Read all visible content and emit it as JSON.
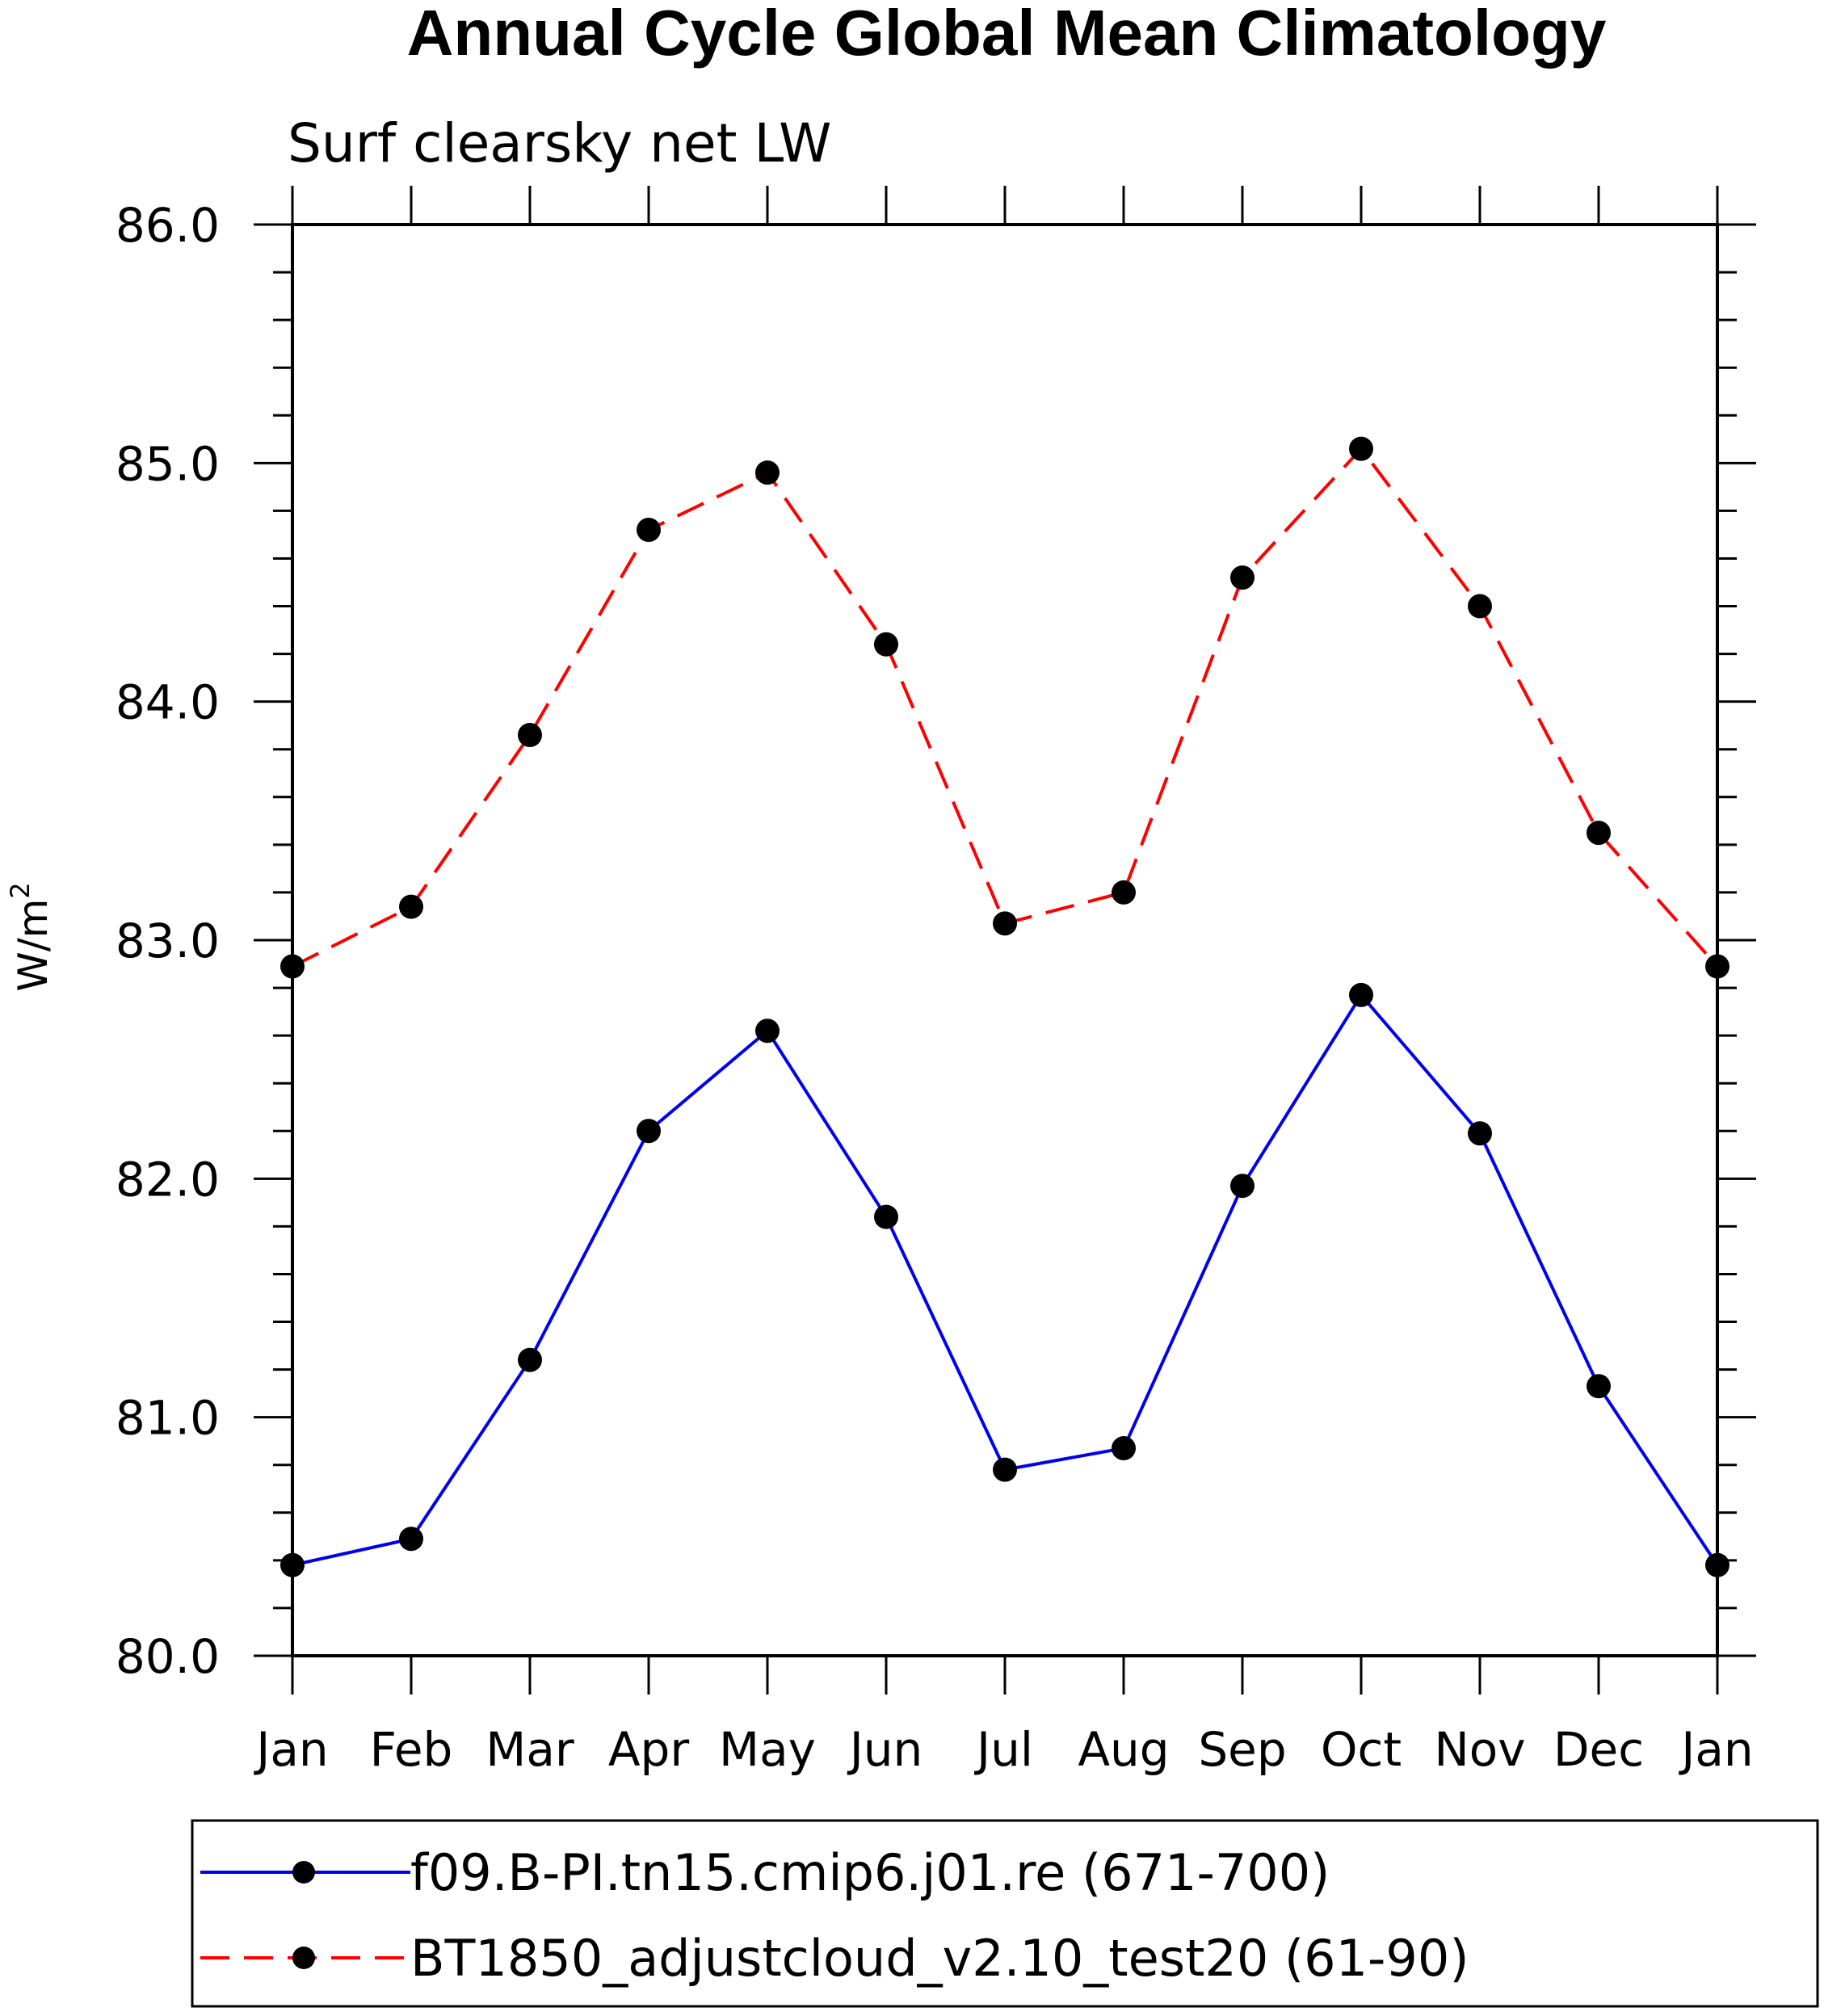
{
  "chart_data": {
    "type": "line",
    "title": "Annual Cycle Global Mean Climatology",
    "subtitle": "Surf clearsky net LW",
    "ylabel": "W/m",
    "ylabel_superscript": "2",
    "xlabel": "",
    "categories": [
      "Jan",
      "Feb",
      "Mar",
      "Apr",
      "May",
      "Jun",
      "Jul",
      "Aug",
      "Sep",
      "Oct",
      "Nov",
      "Dec",
      "Jan"
    ],
    "ylim": [
      80.0,
      86.0
    ],
    "yticks": [
      "80.0",
      "81.0",
      "82.0",
      "83.0",
      "84.0",
      "85.0",
      "86.0"
    ],
    "grid": false,
    "legend_position": "bottom",
    "series": [
      {
        "name": "f09.B-PI.tn15.cmip6.j01.re (671-700)",
        "color": "#0000ee",
        "dash": "solid",
        "values": [
          80.38,
          80.49,
          81.24,
          82.2,
          82.62,
          81.84,
          80.78,
          80.87,
          81.97,
          82.77,
          82.19,
          81.13,
          80.38
        ]
      },
      {
        "name": "BT1850_adjustcloud_v2.10_test20 (61-90)",
        "color": "#ff0000",
        "dash": "dashed",
        "values": [
          82.89,
          83.14,
          83.86,
          84.72,
          84.96,
          84.24,
          83.07,
          83.2,
          84.52,
          85.06,
          84.4,
          83.45,
          82.89
        ]
      }
    ]
  }
}
